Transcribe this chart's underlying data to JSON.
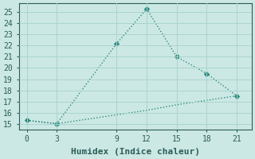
{
  "xlabel": "Humidex (Indice chaleur)",
  "x_ticks": [
    0,
    3,
    9,
    12,
    15,
    18,
    21
  ],
  "y_ticks": [
    15,
    16,
    17,
    18,
    19,
    20,
    21,
    22,
    23,
    24,
    25
  ],
  "ylim": [
    14.5,
    25.8
  ],
  "xlim": [
    -0.8,
    22.5
  ],
  "line1_x": [
    0,
    3,
    9,
    12,
    15,
    18,
    21
  ],
  "line1_y": [
    15.3,
    15.0,
    22.2,
    25.3,
    21.0,
    19.5,
    17.5
  ],
  "line2_x": [
    0,
    3,
    9,
    12,
    15,
    18,
    21
  ],
  "line2_y": [
    15.3,
    15.0,
    15.8,
    16.2,
    16.7,
    17.1,
    17.5
  ],
  "line_color": "#2a8a7e",
  "bg_color": "#cce8e4",
  "grid_color": "#aad4cf",
  "font_color": "#2a5c58",
  "marker": "D",
  "marker_size": 3,
  "line_width": 1.0,
  "font_family": "monospace",
  "tick_fontsize": 7,
  "xlabel_fontsize": 8
}
